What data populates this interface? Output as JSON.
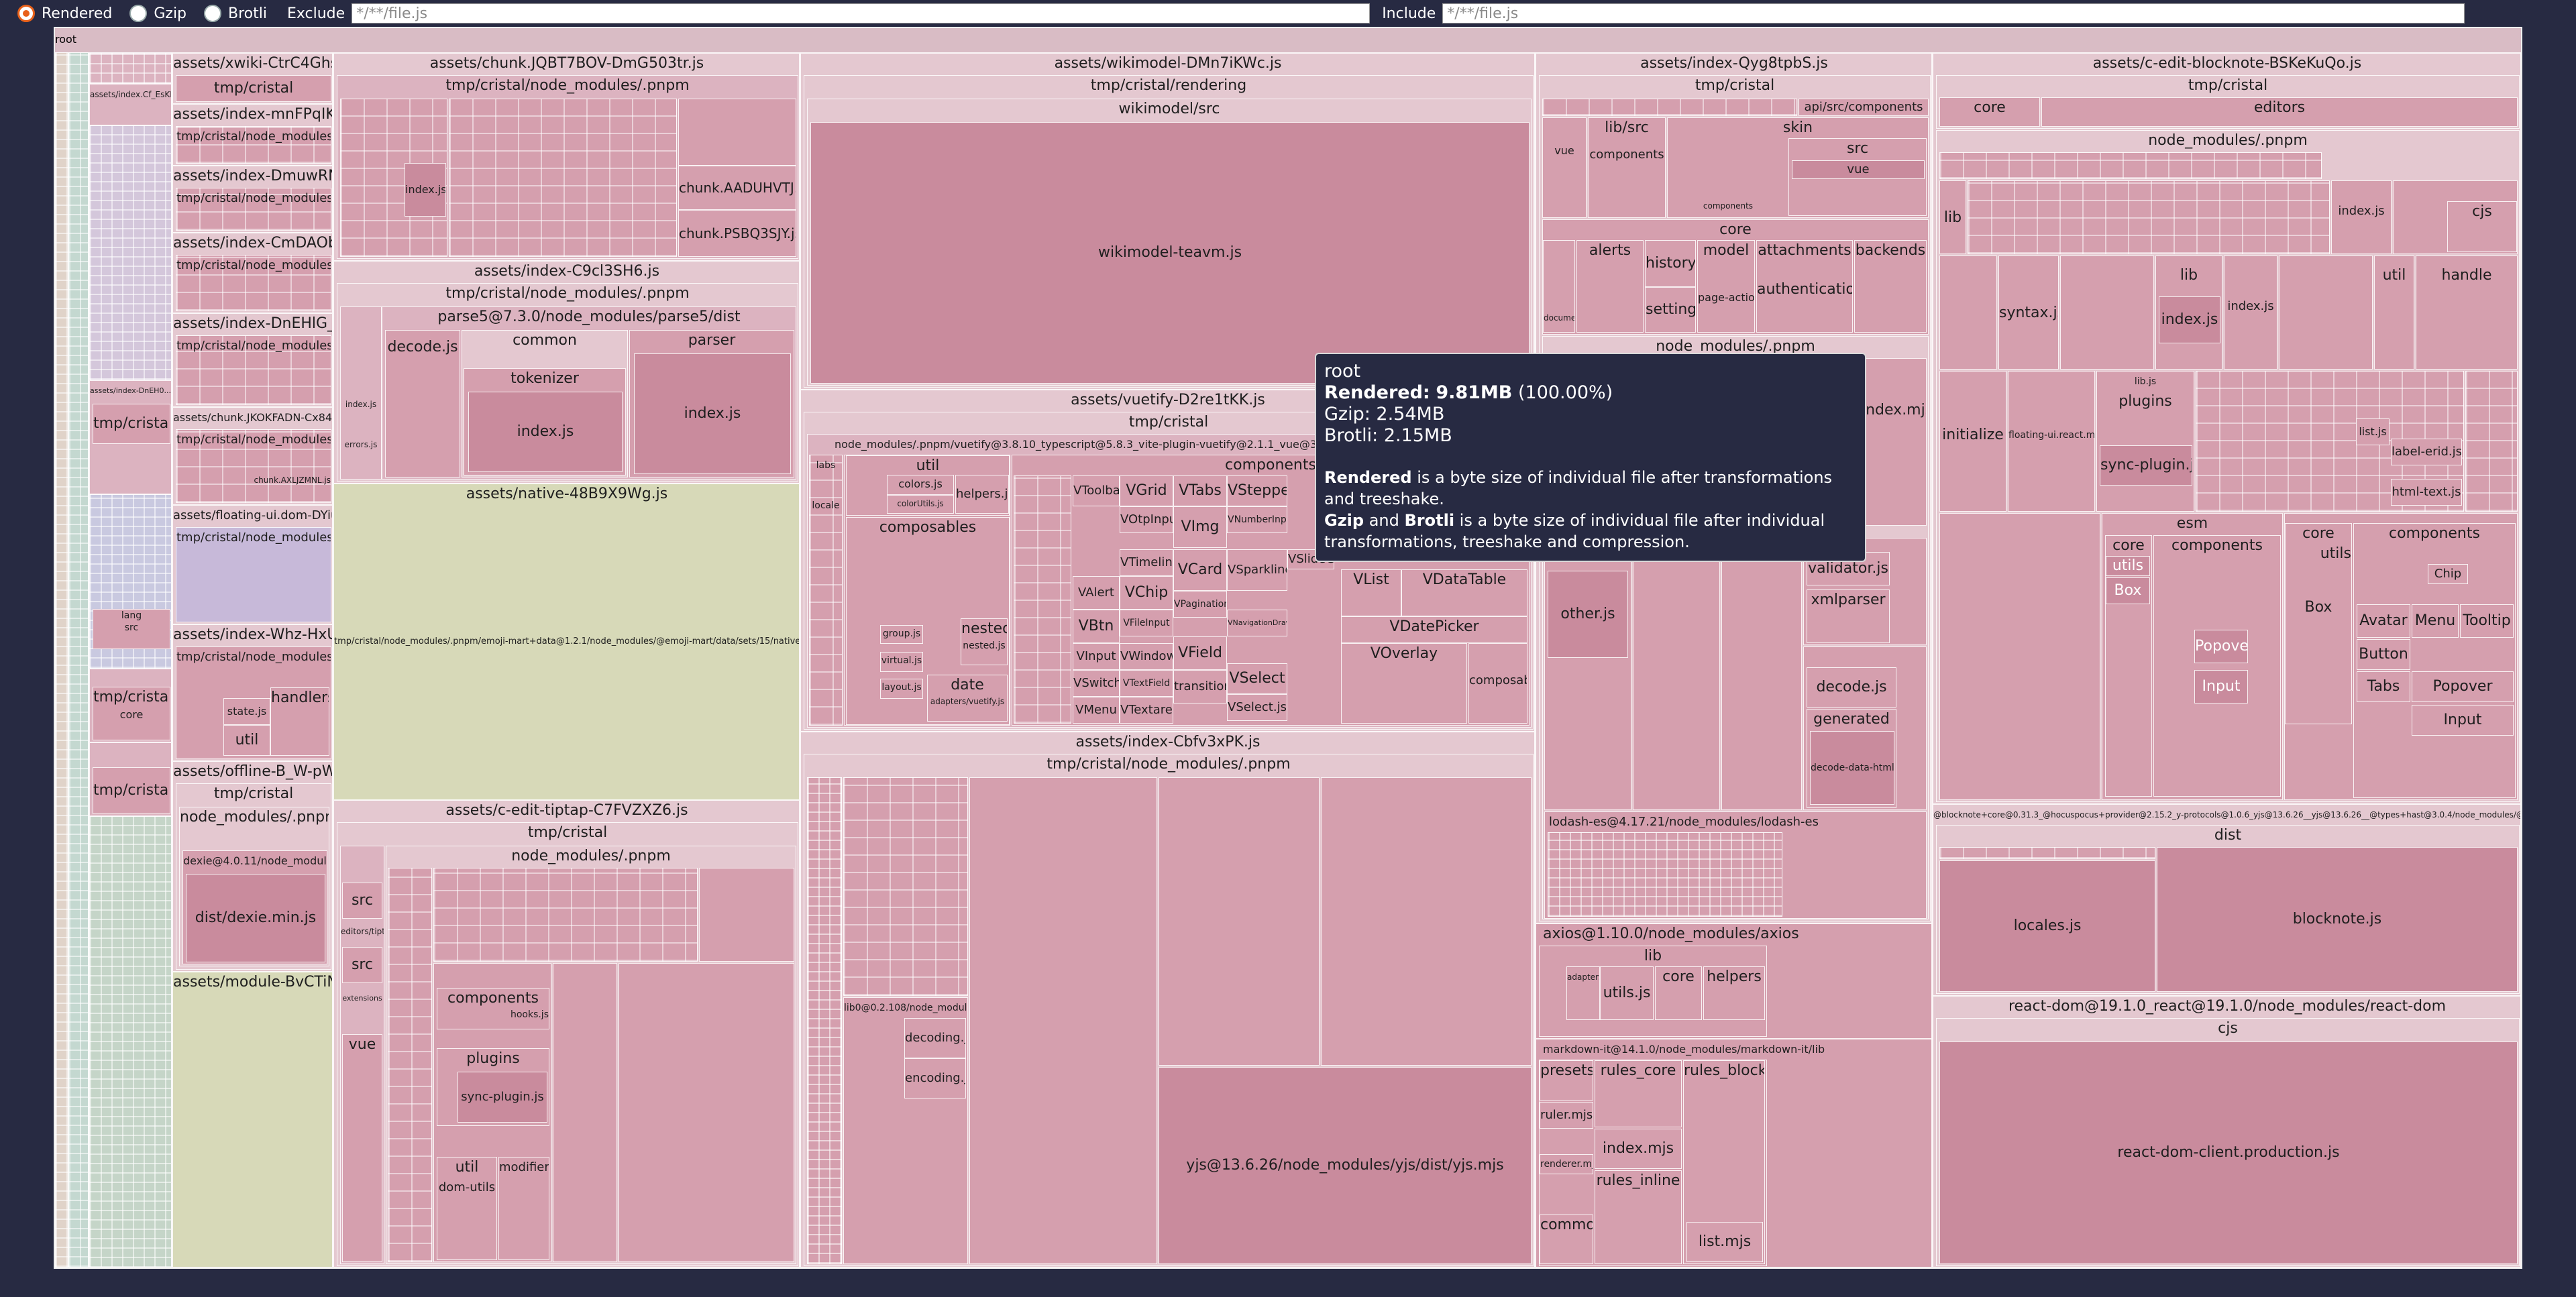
{
  "controls": {
    "modes": [
      {
        "label": "Rendered",
        "selected": true
      },
      {
        "label": "Gzip",
        "selected": false
      },
      {
        "label": "Brotli",
        "selected": false
      }
    ],
    "exclude_label": "Exclude",
    "exclude_placeholder": "*/**/file.js",
    "include_label": "Include",
    "include_placeholder": "*/**/file.js"
  },
  "treemap": {
    "root": "root",
    "c1": {
      "xwiki": "assets/xwiki-CtrC4Ghs.js",
      "xwiki_sub": "tmp/cristal",
      "mnf": "assets/index-mnFPqIKm.js",
      "mnf_sub": "tmp/cristal/node_modules/.pnpm",
      "dmu": "assets/index-DmuwRN4j.js",
      "dmu_sub": "tmp/cristal/node_modules/.pnpm",
      "cmd": "assets/index-CmDAOb86.js",
      "cmd_sub": "tmp/cristal/node_modules/.pnpm",
      "dne": "assets/index-DnEHlG_0.js",
      "dne_sub": "tmp/cristal/node_modules/.pnpm",
      "jko": "assets/chunk.JKOKFADN-Cx84Ovpj.js",
      "jko_sub": "tmp/cristal/node_modules/.pnpm",
      "jko_leaf": "chunk.AXLJZMNL.js",
      "flo": "assets/floating-ui.dom-DYiu8UjK.js",
      "flo_sub": "tmp/cristal/node_modules/.pnpm",
      "whz": "assets/index-Whz-HxUf.js",
      "whz_sub": "tmp/cristal/node_modules/.pnpm",
      "whz_state": "state.js",
      "whz_util": "util",
      "whz_handlers": "handlers",
      "off": "assets/offline-B_W-pWub.js",
      "off_sub": "tmp/cristal",
      "off_nm": "node_modules/.pnpm",
      "off_dexie": "dexie@4.0.11/node_modules/dexie",
      "off_min": "dist/dexie.min.js",
      "mod": "assets/module-BvCTiNIl.js"
    },
    "c0": {
      "a": "assets/index.Cf_EsKH.js",
      "b": "assets/index-DnEH0...QiGNmdi.js",
      "tmpc": "tmp/cristal",
      "tmpc2": "tmp/cristal",
      "core": "core",
      "tmpc3": "tmp/cristal",
      "lang": "lang",
      "src": "src"
    },
    "c2": {
      "chunk": "assets/chunk.JQBT7BOV-DmG503tr.js",
      "chunk_sub": "tmp/cristal/node_modules/.pnpm",
      "chunk_index": "index.js",
      "chunk_aad": "chunk.AADUHVTJ.js",
      "chunk_psb": "chunk.PSBQ3SJY.js",
      "c9c": "assets/index-C9cl3SH6.js",
      "c9c_sub": "tmp/cristal/node_modules/.pnpm",
      "parse5": "parse5@7.3.0/node_modules/parse5/dist",
      "decode": "decode.js",
      "common": "common",
      "tokenizer": "tokenizer",
      "tok_index": "index.js",
      "parser": "parser",
      "parser_index": "index.js",
      "c9c_index": "index.js",
      "errors": "errors.js",
      "native": "assets/native-48B9X9Wg.js",
      "native_path": "tmp/cristal/node_modules/.pnpm/emoji-mart+data@1.2.1/node_modules/@emoji-mart/data/sets/15/native.json",
      "tiptap": "assets/c-edit-tiptap-C7FVZXZ6.js",
      "tiptap_sub": "tmp/cristal",
      "tiptap_nm": "node_modules/.pnpm",
      "tiptap_src": "src",
      "tiptap_src2": "src",
      "tiptap_vue": "vue",
      "components": "components",
      "hooks": "hooks.js",
      "plugins": "plugins",
      "sync": "sync-plugin.js",
      "util": "util",
      "modifiers": "modifiers",
      "domutils": "dom-utils",
      "editor": "editors/tiptap",
      "extensions": "extensions"
    },
    "c3": {
      "wiki": "assets/wikimodel-DMn7iKWc.js",
      "wiki_sub": "tmp/cristal/rendering",
      "wiki_src": "wikimodel/src",
      "wiki_leaf": "wikimodel-teavm.js",
      "vuetify": "assets/vuetify-D2re1tKK.js",
      "vuetify_sub": "tmp/cristal",
      "vuetify_nm": "node_modules/.pnpm/vuetify@3.8.10_typescript@5.8.3_vite-plugin-vuetify@2.1.1_vue@3.5.16_typ",
      "labs": "labs",
      "locale": "locale",
      "util": "util",
      "colors": "colors.js",
      "helpers": "helpers.js",
      "colorUtils": "colorUtils.js",
      "composables": "composables",
      "group": "group.js",
      "virtual": "virtual.js",
      "nested": "nested",
      "nested_js": "nested.js",
      "layout": "layout.js",
      "date": "date",
      "adapters": "adapters/vuetify.js",
      "components": "components",
      "comp_grid": [
        [
          "VToolbar",
          "VGrid",
          "VTabs",
          "VStepper"
        ],
        [
          "VOtpInput",
          "VImg",
          "VNumberInput"
        ],
        [
          "VTimeline",
          "VCard",
          "VSparkline"
        ],
        [
          "VAlert",
          "VChip",
          "VPagination"
        ],
        [
          "VBtn",
          "VFileInput",
          "VNavigationDrawer"
        ],
        [
          "VInput",
          "VWindow",
          "VField",
          "VSelect"
        ],
        [
          "VSwitch",
          "VTextField",
          "transitions",
          "VSelect.js"
        ],
        [
          "VMenu",
          "VTextarea"
        ]
      ],
      "vlist": "VList",
      "vdatatable": "VDataTable",
      "vdatepicker": "VDatePicker",
      "voverlay": "VOverlay",
      "composables2": "composables",
      "vslidegroup": "VSlideGroup",
      "cbf": "assets/index-Cbfv3xPK.js",
      "cbf_sub": "tmp/cristal/node_modules/.pnpm",
      "lib0": "lib0@0.2.108/node_modules/lib0",
      "decoding": "decoding.js",
      "encoding": "encoding.js",
      "yjs": "yjs@13.6.26/node_modules/yjs/dist/yjs.mjs"
    },
    "c4": {
      "qyg": "assets/index-Qyg8tpbS.js",
      "qyg_sub": "tmp/cristal",
      "api": "api/src/components",
      "libsrc": "lib/src",
      "vue": "vue",
      "components": "components",
      "skin": "skin",
      "src": "src",
      "vue2": "vue",
      "comp2": "components",
      "core": "core",
      "history": "history",
      "alerts": "alerts",
      "settings": "settings",
      "model": "model",
      "attachments": "attachments",
      "backends": "backends",
      "page_actions": "page-actions",
      "authentication": "authentication",
      "document": "document",
      "nm": "node_modules/.pnpm",
      "index_mjs": "index.mjs",
      "types": "types",
      "other": "other.js",
      "validator": "validator.js",
      "xmlparser": "xmlparser",
      "decode": "decode.js",
      "generated": "generated",
      "decode_html": "decode-data-html.js",
      "lodash": "lodash-es@4.17.21/node_modules/lodash-es",
      "axios": "axios@1.10.0/node_modules/axios",
      "lib": "lib",
      "adapters": "adapters",
      "utils": "utils.js",
      "core2": "core",
      "helpers": "helpers",
      "markdown": "markdown-it@14.1.0/node_modules/markdown-it/lib",
      "presets": "presets",
      "rules_core": "rules_core",
      "rules_block": "rules_block",
      "ruler": "ruler.mjs",
      "index2": "index.mjs",
      "rules_inline": "rules_inline",
      "renderer": "renderer.mjs",
      "common": "common",
      "list": "list.mjs"
    },
    "c5": {
      "bn": "assets/c-edit-blocknote-BSKeKuQo.js",
      "bn_sub": "tmp/cristal",
      "core": "core",
      "editors": "editors",
      "nm": "node_modules/.pnpm",
      "lib": "lib",
      "index": "index.js",
      "cjs": "cjs",
      "syntax": "syntax.js",
      "lib2": "lib",
      "index2": "index.js",
      "index3": "index.js",
      "util": "util",
      "handle": "handle",
      "floating": "floating-ui.react.mjs",
      "plugins": "plugins",
      "sync": "sync-plugin.js",
      "libjs": "lib.js",
      "initialize": "initialize",
      "list": "list.js",
      "label": "label-erid.js",
      "html_text": "html-text.js",
      "esm": "esm",
      "core2": "core",
      "utils": "utils",
      "components": "components",
      "box": "Box",
      "popover": "Popover",
      "input": "Input",
      "core3": "core",
      "utils2": "utils",
      "components2": "components",
      "box2": "Box",
      "avatar": "Avatar",
      "menu": "Menu",
      "tooltip": "Tooltip",
      "button": "Button",
      "tabs": "Tabs",
      "popover2": "Popover",
      "input2": "Input",
      "chip": "Chip",
      "bn_path": "@blocknote+core@0.31.3_@hocuspocus+provider@2.15.2_y-protocols@1.0.6_yjs@13.6.26__yjs@13.6.26__@types+hast@3.0.4/node_modules/@blocknote/core",
      "dist": "dist",
      "locales": "locales.js",
      "blocknote": "blocknote.js",
      "react_dom": "react-dom@19.1.0_react@19.1.0/node_modules/react-dom",
      "cjs2": "cjs",
      "rdc": "react-dom-client.production.js"
    }
  },
  "tooltip": {
    "title": "root",
    "rendered_label": "Rendered:",
    "rendered_value": "9.81MB",
    "rendered_pct": "(100.00%)",
    "gzip": "Gzip: 2.54MB",
    "brotli": "Brotli: 2.15MB",
    "desc1_b": "Rendered",
    "desc1": " is a byte size of individual file after transformations and treeshake.",
    "desc2_b1": "Gzip",
    "desc2_and": " and ",
    "desc2_b2": "Brotli",
    "desc2": " is a byte size of individual file after individual transformations, treeshake and compression."
  }
}
